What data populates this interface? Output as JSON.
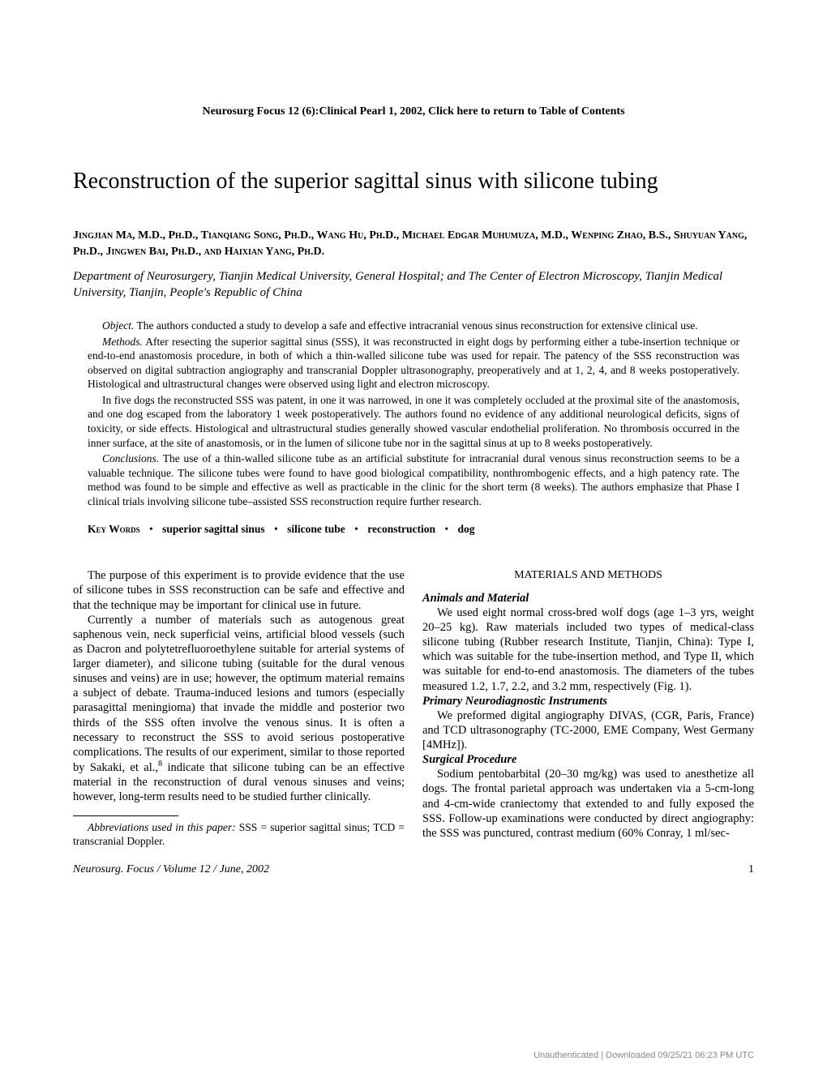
{
  "journal_header": "Neurosurg Focus 12 (6):Clinical Pearl 1, 2002, Click here to return to Table of Contents",
  "title": "Reconstruction of the superior sagittal sinus with silicone tubing",
  "authors": "Jingjian Ma, M.D., Ph.D., Tianqiang Song, Ph.D., Wang Hu, Ph.D., Michael Edgar Muhumuza, M.D., Wenping Zhao, B.S., Shuyuan Yang, Ph.D.,   Jingwen Bai, Ph.D., and Haixian Yang, Ph.D.",
  "affiliation": "Department of Neurosurgery, Tianjin Medical University, General Hospital; and The Center of Electron Microscopy, Tianjin Medical University, Tianjin, People's Republic of China",
  "abstract": {
    "object_label": "Object.",
    "object_text": " The authors conducted a study to develop a safe and effective intracranial venous sinus reconstruction for extensive clinical use.",
    "methods_label": "Methods.",
    "methods_text1": " After resecting the superior sagittal sinus (SSS), it was reconstructed in eight dogs by performing either a tube-insertion technique or end-to-end anastomosis procedure, in both of which a thin-walled silicone tube was used for repair. The patency of the SSS reconstruction was observed on digital subtraction angiography and transcranial Doppler ultrasonography, preoperatively and at 1, 2, 4, and 8 weeks postoperatively. Histological and ultrastructural changes were observed using light and electron microscopy.",
    "methods_text2": "In five dogs the reconstructed SSS was patent, in one it was narrowed, in one it was completely occluded at the proximal site of the anastomosis, and one dog escaped from the laboratory 1 week postoperatively. The authors found no evidence of any additional neurological deficits, signs of toxicity, or side effects. Histological and ultrastructural studies generally showed vascular endothelial proliferation. No thrombosis occurred in the inner surface, at the site of anastomosis, or in the lumen of silicone tube nor in the sagittal sinus at up to 8 weeks postoperatively.",
    "conclusions_label": "Conclusions.",
    "conclusions_text": " The use of a thin-walled silicone tube as an artificial substitute for intracranial dural venous sinus reconstruction seems to be a valuable technique. The silicone tubes were found to have good biological compatibility, nonthrombogenic effects, and a high patency rate. The method was found to be simple and effective as well as practicable in the clinic for the short term (8 weeks). The authors emphasize that Phase I clinical trials involving silicone tube–assisted SSS reconstruction require further research."
  },
  "keywords": {
    "label": "Key Words",
    "items": [
      "superior sagittal sinus",
      "silicone tube",
      "reconstruction",
      "dog"
    ]
  },
  "body": {
    "left": {
      "p1": "The purpose of this experiment is to provide evidence that the use of silicone tubes in SSS reconstruction can be safe and effective and that the technique may be important for clinical use in future.",
      "p2a": "Currently a number of materials such as autogenous great saphenous vein, neck superficial veins, artificial blood vessels (such as Dacron and polytetrefluoroethylene suitable for arterial systems of larger diameter), and silicone tubing (suitable for the dural venous sinuses and veins) are in use; however, the optimum material remains a subject of debate. Trauma-induced lesions and tumors (especially parasagittal meningioma) that invade the middle and posterior two thirds of the SSS often involve the venous sinus. It is often a necessary to reconstruct the SSS to avoid serious postoperative complications. The results of our experiment, similar to those reported by Sakaki, et al.,",
      "p2b": " indicate that silicone tubing can be an effective material in the reconstruction of dural venous sinuses and veins; however, long-term results need to be studied further clinically.",
      "sup": "8"
    },
    "right": {
      "heading": "MATERIALS AND METHODS",
      "sub1": "Animals and Material",
      "p1": "We used eight normal cross-bred wolf dogs (age 1–3 yrs, weight 20–25 kg). Raw materials included two types of medical-class silicone tubing (Rubber research Institute, Tianjin, China): Type I, which was suitable for the tube-insertion method, and Type II, which was suitable for end-to-end anastomosis. The diameters of the tubes measured 1.2, 1.7, 2.2, and 3.2 mm, respectively (Fig. 1).",
      "sub2": "Primary Neurodiagnostic Instruments",
      "p2": "We preformed digital angiography DIVAS, (CGR, Paris, France) and TCD ultrasonography (TC-2000, EME Company, West Germany [4MHz]).",
      "sub3": "Surgical Procedure",
      "p3": "Sodium pentobarbital (20–30 mg/kg) was used to anesthetize all dogs. The frontal parietal approach was undertaken via a 5-cm-long and 4-cm-wide craniectomy that extended to and fully exposed the SSS. Follow-up examinations were conducted by direct angiography: the SSS was punctured, contrast medium (60% Conray, 1 ml/sec-"
    }
  },
  "abbreviations": {
    "label": "Abbreviations used in this paper:",
    "text": " SSS = superior sagittal sinus; TCD = transcranial Doppler."
  },
  "footer": {
    "left": "Neurosurg. Focus / Volume 12 / June, 2002",
    "page": "1"
  },
  "watermark": "Unauthenticated | Downloaded 09/25/21 06:23 PM UTC"
}
